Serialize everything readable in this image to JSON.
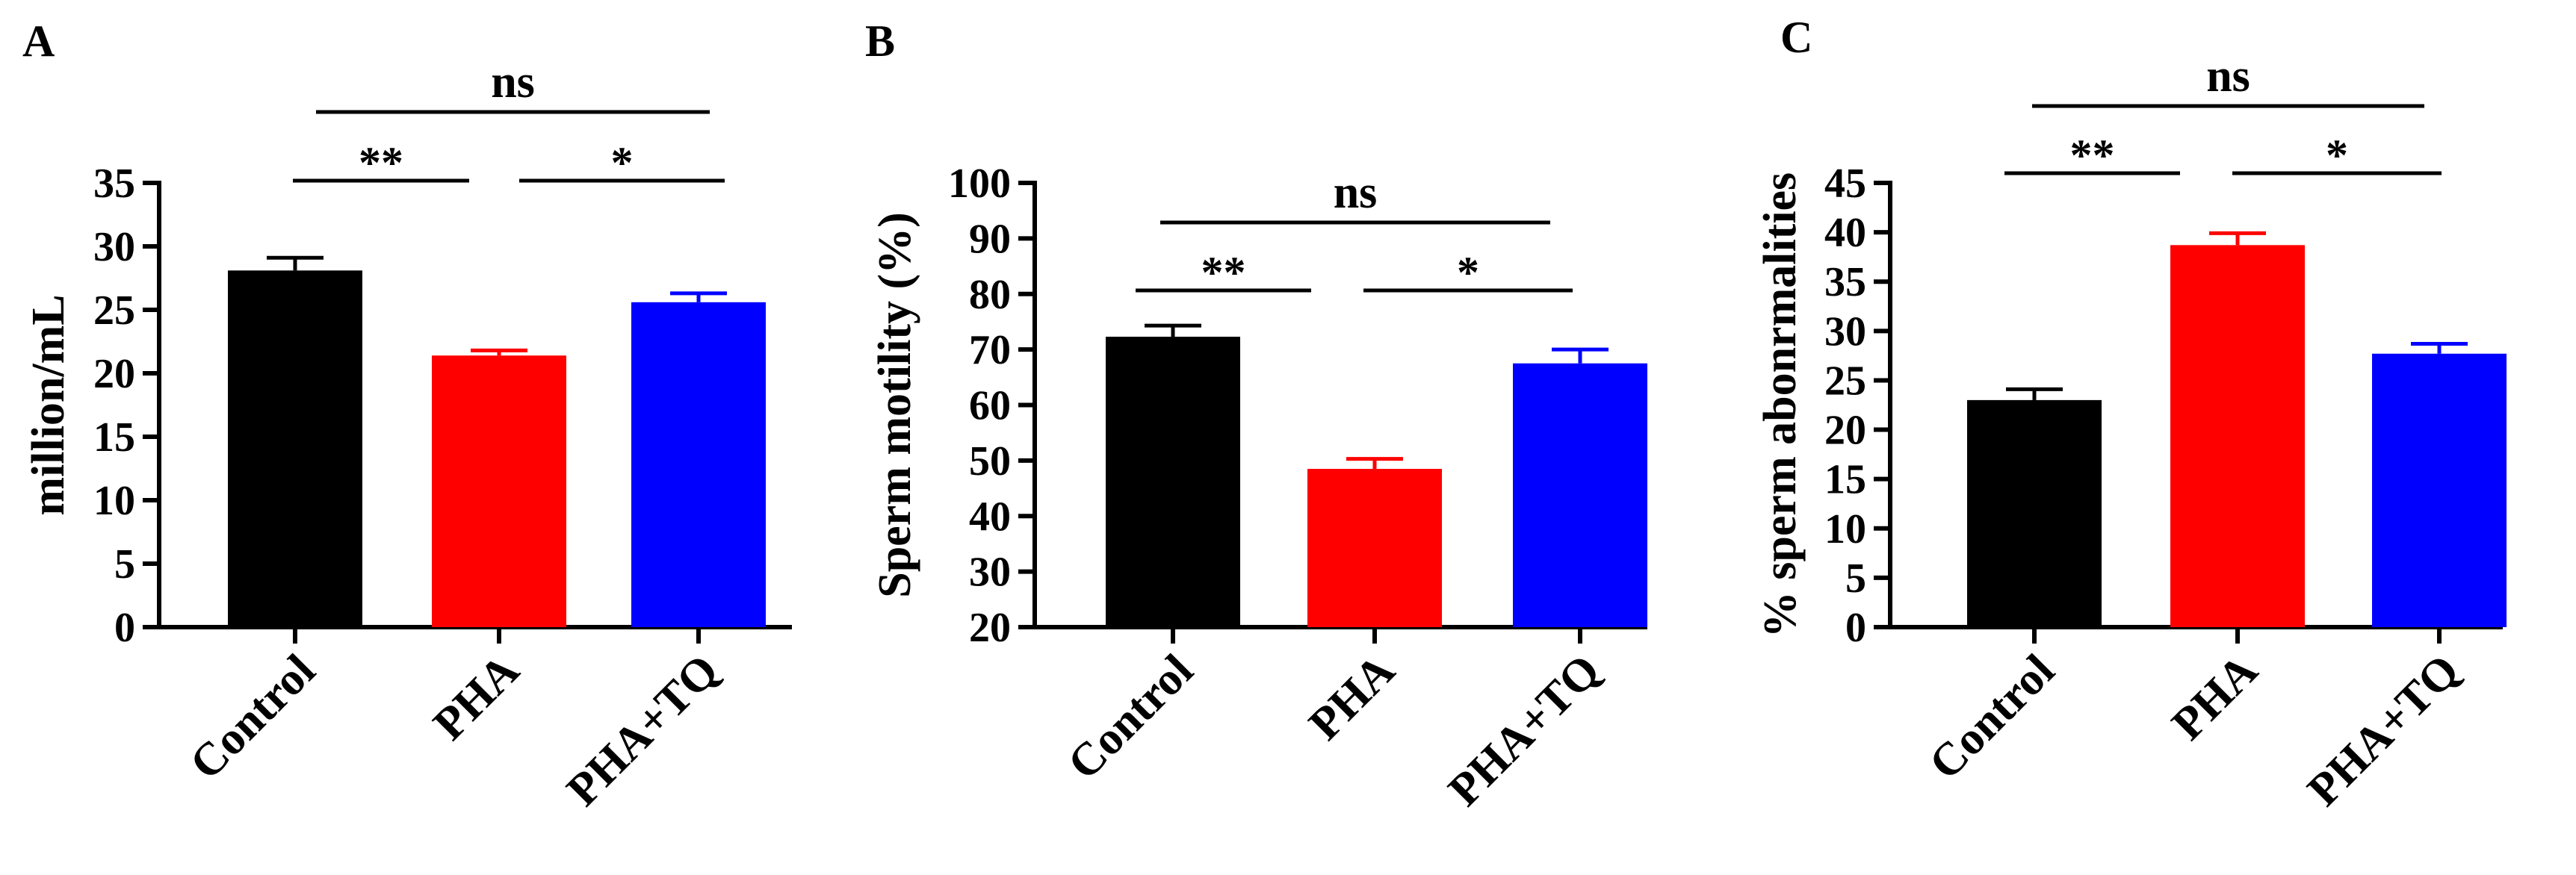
{
  "chart_data": [
    {
      "type": "bar",
      "panel": "A",
      "categories": [
        "Control",
        "PHA",
        "PHA+TQ"
      ],
      "values": [
        28.1,
        21.4,
        25.6
      ],
      "errors": [
        1.0,
        0.4,
        0.7
      ],
      "colors": [
        "#000000",
        "#ff0000",
        "#0000ff"
      ],
      "ylabel": "million/mL",
      "ylim": [
        0,
        35
      ],
      "yticks": [
        "0",
        "5",
        "10",
        "15",
        "20",
        "25",
        "30",
        "35"
      ],
      "significance": [
        {
          "from": 0,
          "to": 1,
          "label": "**",
          "level": 1
        },
        {
          "from": 1,
          "to": 2,
          "label": "*",
          "level": 1
        },
        {
          "from": 0,
          "to": 2,
          "label": "ns",
          "level": 2
        }
      ]
    },
    {
      "type": "bar",
      "panel": "B",
      "categories": [
        "Control",
        "PHA",
        "PHA+TQ"
      ],
      "values": [
        72.3,
        48.5,
        67.5
      ],
      "errors": [
        2.0,
        1.8,
        2.5
      ],
      "colors": [
        "#000000",
        "#ff0000",
        "#0000ff"
      ],
      "ylabel": "Sperm motility (%)",
      "ylim": [
        20,
        100
      ],
      "yticks": [
        "20",
        "30",
        "40",
        "50",
        "60",
        "70",
        "80",
        "90",
        "100"
      ],
      "significance": [
        {
          "from": 0,
          "to": 1,
          "label": "**",
          "level": 1
        },
        {
          "from": 1,
          "to": 2,
          "label": "*",
          "level": 1
        },
        {
          "from": 0,
          "to": 2,
          "label": "ns",
          "level": 2
        }
      ]
    },
    {
      "type": "bar",
      "panel": "C",
      "categories": [
        "Control",
        "PHA",
        "PHA+TQ"
      ],
      "values": [
        23.0,
        38.7,
        27.7
      ],
      "errors": [
        1.1,
        1.2,
        1.0
      ],
      "colors": [
        "#000000",
        "#ff0000",
        "#0000ff"
      ],
      "ylabel": "% sperm abonrmalities",
      "ylim": [
        0,
        45
      ],
      "yticks": [
        "0",
        "5",
        "10",
        "15",
        "20",
        "25",
        "30",
        "35",
        "40",
        "45"
      ],
      "significance": [
        {
          "from": 0,
          "to": 1,
          "label": "**",
          "level": 1
        },
        {
          "from": 1,
          "to": 2,
          "label": "*",
          "level": 1
        },
        {
          "from": 0,
          "to": 2,
          "label": "ns",
          "level": 2
        }
      ]
    }
  ]
}
